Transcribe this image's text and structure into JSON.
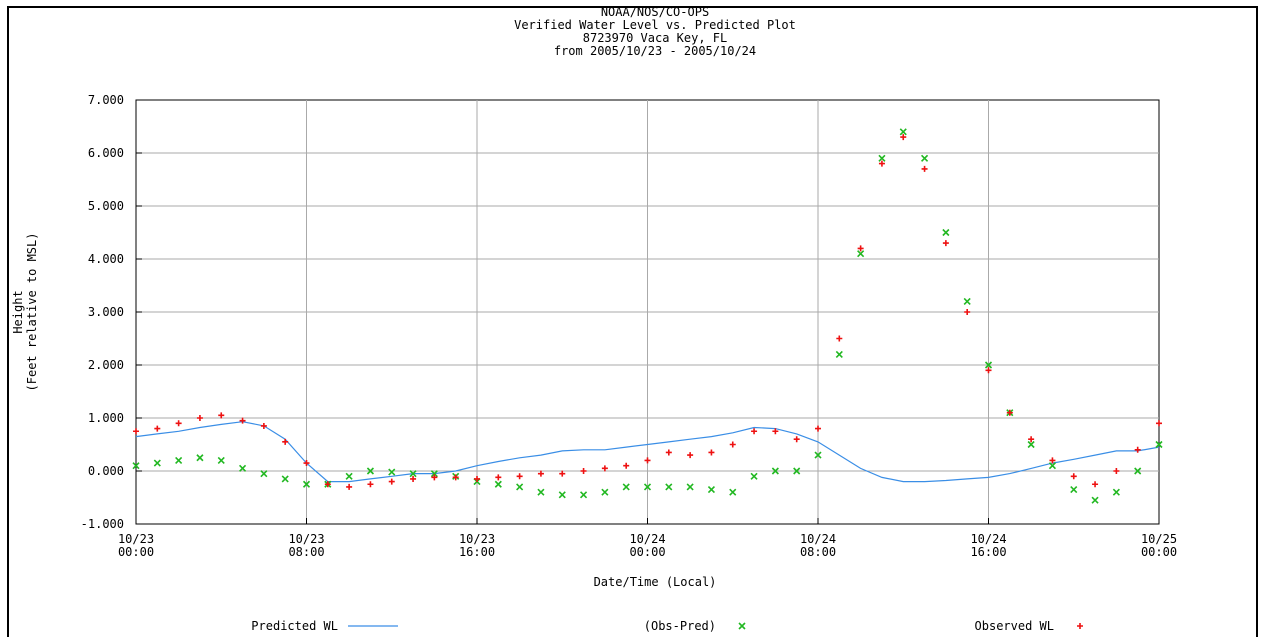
{
  "chart_data": {
    "type": "line",
    "title": [
      "NOAA/NOS/CO-OPS",
      "Verified  Water Level vs. Predicted Plot",
      "8723970 Vaca Key, FL",
      "from 2005/10/23 - 2005/10/24"
    ],
    "y_label": [
      "Height",
      "(Feet relative to MSL)"
    ],
    "x_label": "Date/Time (Local)",
    "x": [
      "10/23 00:00",
      "10/23 01:00",
      "10/23 02:00",
      "10/23 03:00",
      "10/23 04:00",
      "10/23 05:00",
      "10/23 06:00",
      "10/23 07:00",
      "10/23 08:00",
      "10/23 09:00",
      "10/23 10:00",
      "10/23 11:00",
      "10/23 12:00",
      "10/23 13:00",
      "10/23 14:00",
      "10/23 15:00",
      "10/23 16:00",
      "10/23 17:00",
      "10/23 18:00",
      "10/23 19:00",
      "10/23 20:00",
      "10/23 21:00",
      "10/23 22:00",
      "10/23 23:00",
      "10/24 00:00",
      "10/24 01:00",
      "10/24 02:00",
      "10/24 03:00",
      "10/24 04:00",
      "10/24 05:00",
      "10/24 06:00",
      "10/24 07:00",
      "10/24 08:00",
      "10/24 09:00",
      "10/24 10:00",
      "10/24 11:00",
      "10/24 12:00",
      "10/24 13:00",
      "10/24 14:00",
      "10/24 15:00",
      "10/24 16:00",
      "10/24 17:00",
      "10/24 18:00",
      "10/24 19:00",
      "10/24 20:00",
      "10/24 21:00",
      "10/24 22:00",
      "10/24 23:00",
      "10/25 00:00"
    ],
    "xlim": [
      "10/23 00:00",
      "10/25 00:00"
    ],
    "xticks": [
      "10/23 00:00",
      "10/23 08:00",
      "10/23 16:00",
      "10/24 00:00",
      "10/24 08:00",
      "10/24 16:00",
      "10/25 00:00"
    ],
    "ylim": [
      -1,
      7
    ],
    "yticks": [
      {
        "value": -1,
        "label": "-1.000"
      },
      {
        "value": 0,
        "label": "0.000"
      },
      {
        "value": 1,
        "label": "1.000"
      },
      {
        "value": 2,
        "label": "2.000"
      },
      {
        "value": 3,
        "label": "3.000"
      },
      {
        "value": 4,
        "label": "4.000"
      },
      {
        "value": 5,
        "label": "5.000"
      },
      {
        "value": 6,
        "label": "6.000"
      },
      {
        "value": 7,
        "label": "7.000"
      }
    ],
    "grid": true,
    "series": [
      {
        "name": "Predicted WL",
        "color": "#3a8ee6",
        "marker": "line",
        "values": [
          0.65,
          0.7,
          0.75,
          0.82,
          0.88,
          0.93,
          0.85,
          0.6,
          0.15,
          -0.2,
          -0.2,
          -0.15,
          -0.1,
          -0.05,
          -0.05,
          0,
          0.1,
          0.18,
          0.25,
          0.3,
          0.38,
          0.4,
          0.4,
          0.45,
          0.5,
          0.55,
          0.6,
          0.65,
          0.72,
          0.82,
          0.8,
          0.7,
          0.55,
          0.3,
          0.05,
          -0.12,
          -0.2,
          -0.2,
          -0.18,
          -0.15,
          -0.12,
          -0.05,
          0.05,
          0.15,
          0.22,
          0.3,
          0.38,
          0.38,
          0.45
        ]
      },
      {
        "name": "(Obs-Pred)",
        "color": "#22b822",
        "marker": "x",
        "values": [
          0.1,
          0.15,
          0.2,
          0.25,
          0.2,
          0.05,
          -0.05,
          -0.15,
          -0.25,
          -0.25,
          -0.1,
          0,
          -0.02,
          -0.05,
          -0.05,
          -0.1,
          -0.2,
          -0.25,
          -0.3,
          -0.4,
          -0.45,
          -0.45,
          -0.4,
          -0.3,
          -0.3,
          -0.3,
          -0.3,
          -0.35,
          -0.4,
          -0.1,
          0,
          0,
          0.3,
          2.2,
          4.1,
          5.9,
          6.4,
          5.9,
          4.5,
          3.2,
          2,
          1.1,
          0.5,
          0.1,
          -0.35,
          -0.55,
          -0.4,
          0,
          0.5
        ]
      },
      {
        "name": "Observed WL",
        "color": "#ee1111",
        "marker": "plus",
        "values": [
          0.75,
          0.8,
          0.9,
          1,
          1.05,
          0.95,
          0.85,
          0.55,
          0.15,
          -0.25,
          -0.3,
          -0.25,
          -0.2,
          -0.15,
          -0.12,
          -0.12,
          -0.15,
          -0.12,
          -0.1,
          -0.05,
          -0.05,
          0,
          0.05,
          0.1,
          0.2,
          0.35,
          0.3,
          0.35,
          0.5,
          0.75,
          0.75,
          0.6,
          0.8,
          2.5,
          4.2,
          5.8,
          6.3,
          5.7,
          4.3,
          3,
          1.9,
          1.1,
          0.6,
          0.2,
          -0.1,
          -0.25,
          0,
          0.4,
          0.9
        ]
      }
    ]
  }
}
